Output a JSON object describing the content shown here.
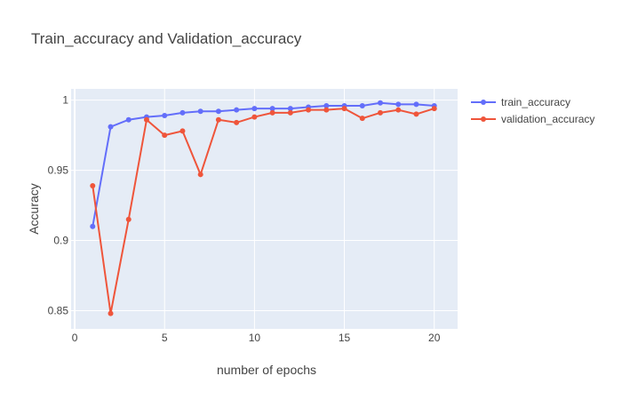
{
  "chart_data": {
    "type": "line",
    "title": "Train_accuracy and Validation_accuracy",
    "xlabel": "number of epochs",
    "ylabel": "Accuracy",
    "x": [
      1,
      2,
      3,
      4,
      5,
      6,
      7,
      8,
      9,
      10,
      11,
      12,
      13,
      14,
      15,
      16,
      17,
      18,
      19,
      20
    ],
    "xlim": [
      -0.2,
      21.3
    ],
    "ylim": [
      0.837,
      1.008
    ],
    "xticks": [
      0,
      5,
      10,
      15,
      20
    ],
    "yticks": [
      0.85,
      0.9,
      0.95,
      1
    ],
    "ytick_labels": [
      "0.85",
      "0.9",
      "0.95",
      "1"
    ],
    "grid": true,
    "legend_position": "top-right",
    "series": [
      {
        "name": "train_accuracy",
        "color": "#636efa",
        "values": [
          0.91,
          0.981,
          0.986,
          0.988,
          0.989,
          0.991,
          0.992,
          0.992,
          0.993,
          0.994,
          0.994,
          0.994,
          0.995,
          0.996,
          0.996,
          0.996,
          0.998,
          0.997,
          0.997,
          0.996
        ]
      },
      {
        "name": "validation_accuracy",
        "color": "#ef553b",
        "values": [
          0.939,
          0.848,
          0.915,
          0.986,
          0.975,
          0.978,
          0.947,
          0.986,
          0.984,
          0.988,
          0.991,
          0.991,
          0.993,
          0.993,
          0.994,
          0.987,
          0.991,
          0.993,
          0.99,
          0.994
        ]
      }
    ]
  }
}
